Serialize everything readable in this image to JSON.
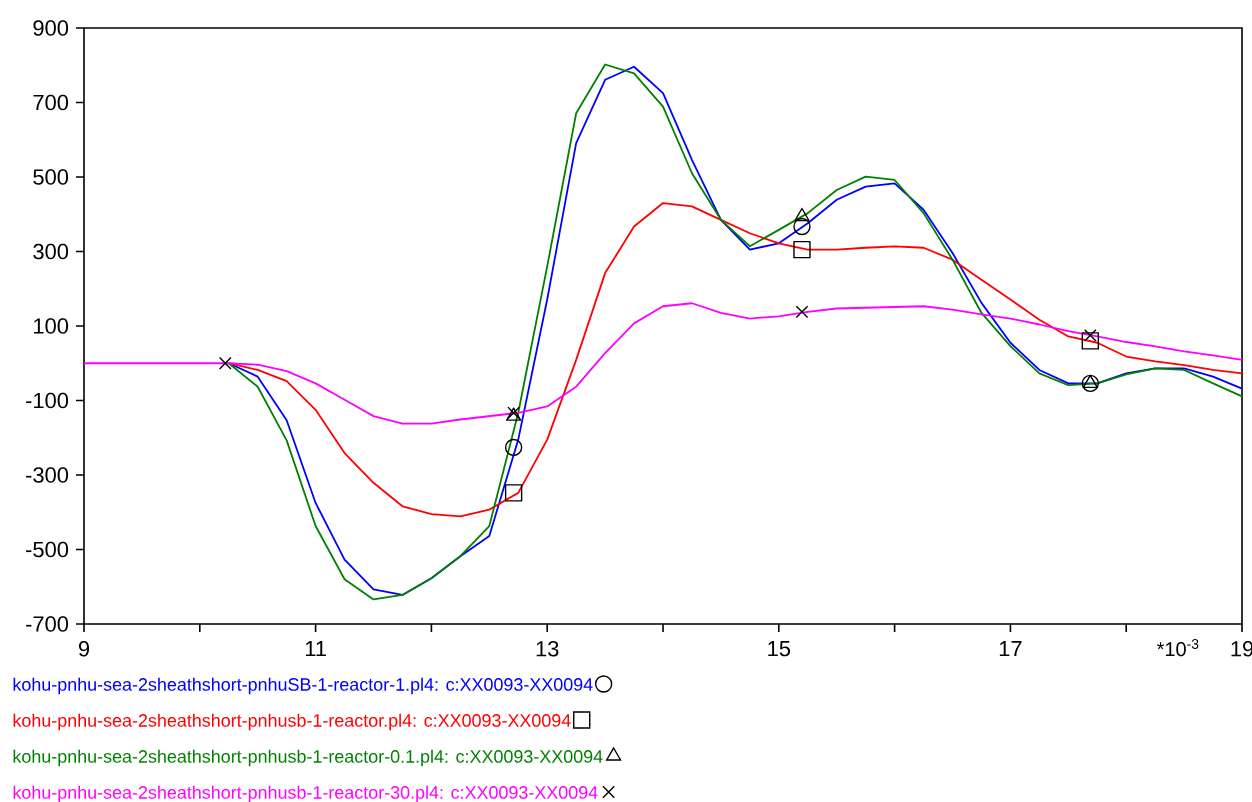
{
  "chart_data": {
    "type": "line",
    "xlabel": "*10$^{-3}$",
    "x": [
      9,
      9.25,
      9.5,
      9.75,
      10,
      10.25,
      10.5,
      10.75,
      11,
      11.25,
      11.5,
      11.75,
      12,
      12.25,
      12.5,
      12.75,
      13,
      13.25,
      13.5,
      13.75,
      14,
      14.25,
      14.5,
      14.75,
      15,
      15.25,
      15.5,
      15.75,
      16,
      16.25,
      16.5,
      16.75,
      17,
      17.25,
      17.5,
      17.75,
      18,
      18.25,
      18.5,
      18.75,
      19
    ],
    "series": [
      {
        "name": "kohu-pnhu-sea-2sheathshort-pnhuSB-1-reactor-1.pl4: c:XX0093-XX0094",
        "color": "#0000ff",
        "values": [
          null,
          null,
          null,
          null,
          null,
          0,
          -36,
          -153,
          -375,
          -527,
          -607,
          -622,
          -577,
          -518,
          -464,
          -205,
          171,
          591,
          761,
          796,
          725,
          546,
          385,
          305,
          322,
          376,
          439,
          474,
          483,
          412,
          296,
          162,
          55,
          -18,
          -54,
          -54,
          -27,
          -14,
          -14,
          -36,
          -68
        ]
      },
      {
        "name": "kohu-pnhu-sea-2sheathshort-pnhusb-1-reactor.pl4: c:XX0093-XX0094",
        "color": "#ff0000",
        "values": [
          null,
          null,
          null,
          null,
          null,
          0,
          -18,
          -48,
          -125,
          -241,
          -321,
          -384,
          -405,
          -411,
          -393,
          -348,
          -205,
          9,
          242,
          367,
          430,
          421,
          385,
          349,
          322,
          305,
          305,
          310,
          314,
          310,
          278,
          224,
          171,
          117,
          72,
          55,
          18,
          5,
          -5,
          -18,
          -27
        ]
      },
      {
        "name": "kohu-pnhu-sea-2sheathshort-pnhusb-1-reactor-0.1.pl4: c:XX0093-XX0094",
        "color": "#008000",
        "values": [
          null,
          null,
          null,
          null,
          null,
          0,
          -63,
          -207,
          -437,
          -580,
          -634,
          -622,
          -577,
          -518,
          -437,
          -133,
          260,
          671,
          802,
          778,
          689,
          510,
          385,
          314,
          358,
          403,
          465,
          501,
          492,
          403,
          278,
          135,
          46,
          -27,
          -59,
          -54,
          -30,
          -14,
          -18,
          -54,
          -89
        ]
      },
      {
        "name": "kohu-pnhu-sea-2sheathshort-pnhusb-1-reactor-30.pl4: c:XX0093-XX0094",
        "color": "#ff00ff",
        "values": [
          0,
          0,
          0,
          0,
          0,
          0,
          -4,
          -21,
          -54,
          -98,
          -142,
          -162,
          -162,
          -151,
          -142,
          -133,
          -116,
          -63,
          27,
          107,
          153,
          161,
          135,
          120,
          126,
          138,
          147,
          149,
          151,
          153,
          144,
          131,
          120,
          104,
          86,
          72,
          57,
          45,
          32,
          21,
          9
        ]
      },
      {
        "type": "scatter",
        "color": "#000000",
        "marker": "circle",
        "x": [
          12.71,
          15.2,
          17.69
        ],
        "values": [
          -226,
          367,
          -54
        ]
      },
      {
        "type": "scatter",
        "color": "#000000",
        "marker": "square",
        "x": [
          12.71,
          15.2,
          17.69
        ],
        "values": [
          -348,
          305,
          60
        ]
      },
      {
        "type": "scatter",
        "color": "#000000",
        "marker": "triangle",
        "x": [
          12.71,
          15.2,
          17.69
        ],
        "values": [
          -142,
          394,
          -54
        ]
      },
      {
        "type": "scatter",
        "color": "#000000",
        "marker": "cross",
        "x": [
          10.22,
          12.71,
          15.2,
          17.69
        ],
        "values": [
          0,
          -133,
          138,
          75
        ]
      }
    ],
    "xlim": [
      9,
      19
    ],
    "xticks": [
      9,
      {
        "value": 10,
        "label": null
      },
      11,
      {
        "value": 12,
        "label": null
      },
      13,
      {
        "value": 14,
        "label": null
      },
      15,
      {
        "value": 16,
        "label": null
      },
      17,
      {
        "value": 18,
        "label": null
      },
      19
    ],
    "ylim": [
      -700,
      900
    ],
    "yticks": [
      -700,
      -500,
      -300,
      -100,
      100,
      300,
      500,
      700,
      900
    ],
    "grid": false,
    "legend": "bottom"
  }
}
